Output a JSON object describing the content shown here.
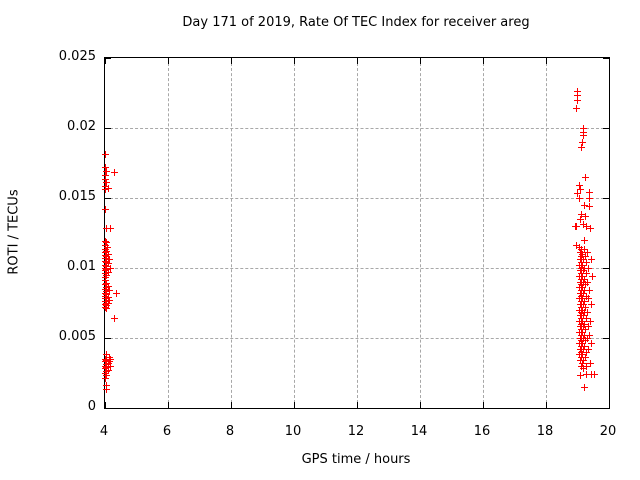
{
  "colors": {
    "marker": "#ff0000",
    "grid": "#a8a8a8",
    "axis": "#000000",
    "background": "#ffffff"
  },
  "chart_data": {
    "type": "scatter",
    "title": "Day 171 of 2019, Rate Of TEC Index for receiver areg",
    "xlabel": "GPS time / hours",
    "ylabel": "ROTI / TECUs",
    "xlim": [
      4,
      20
    ],
    "ylim": [
      0,
      0.025
    ],
    "x_ticks": [
      4,
      6,
      8,
      10,
      12,
      14,
      16,
      18,
      20
    ],
    "x_tick_labels": [
      "4",
      "6",
      "8",
      "10",
      "12",
      "14",
      "16",
      "18",
      "20"
    ],
    "y_ticks": [
      0,
      0.005,
      0.01,
      0.015,
      0.02,
      0.025
    ],
    "y_tick_labels": [
      "0",
      "0.005",
      "0.01",
      "0.015",
      "0.02",
      "0.025"
    ],
    "grid": true,
    "legend_position": "none",
    "marker": {
      "shape": "plus",
      "color": "#ff0000"
    },
    "series": [
      {
        "name": "ROTI",
        "points": [
          [
            4.03,
            0.0181
          ],
          [
            4.03,
            0.0172
          ],
          [
            4.06,
            0.0169
          ],
          [
            4.29,
            0.0168
          ],
          [
            4.03,
            0.0166
          ],
          [
            4.03,
            0.0163
          ],
          [
            4.06,
            0.0161
          ],
          [
            4.03,
            0.0158
          ],
          [
            4.1,
            0.0157
          ],
          [
            4.03,
            0.0156
          ],
          [
            4.03,
            0.0142
          ],
          [
            4.06,
            0.0128
          ],
          [
            4.19,
            0.0128
          ],
          [
            4.03,
            0.0119
          ],
          [
            4.06,
            0.0118
          ],
          [
            4.03,
            0.0116
          ],
          [
            4.08,
            0.0115
          ],
          [
            4.03,
            0.0113
          ],
          [
            4.06,
            0.0112
          ],
          [
            4.03,
            0.0111
          ],
          [
            4.1,
            0.011
          ],
          [
            4.03,
            0.0109
          ],
          [
            4.06,
            0.0108
          ],
          [
            4.03,
            0.0107
          ],
          [
            4.13,
            0.0106
          ],
          [
            4.03,
            0.0105
          ],
          [
            4.06,
            0.0104
          ],
          [
            4.1,
            0.0103
          ],
          [
            4.03,
            0.0102
          ],
          [
            4.06,
            0.0101
          ],
          [
            4.03,
            0.01
          ],
          [
            4.16,
            0.01
          ],
          [
            4.06,
            0.0099
          ],
          [
            4.03,
            0.0098
          ],
          [
            4.1,
            0.0097
          ],
          [
            4.03,
            0.0096
          ],
          [
            4.06,
            0.0095
          ],
          [
            4.03,
            0.0093
          ],
          [
            4.03,
            0.0091
          ],
          [
            4.06,
            0.0089
          ],
          [
            4.03,
            0.0088
          ],
          [
            4.1,
            0.0087
          ],
          [
            4.06,
            0.0086
          ],
          [
            4.03,
            0.0085
          ],
          [
            4.13,
            0.0084
          ],
          [
            4.06,
            0.0083
          ],
          [
            4.38,
            0.0082
          ],
          [
            4.03,
            0.0082
          ],
          [
            4.06,
            0.0081
          ],
          [
            4.03,
            0.008
          ],
          [
            4.1,
            0.0079
          ],
          [
            4.06,
            0.0078
          ],
          [
            4.03,
            0.0078
          ],
          [
            4.13,
            0.0077
          ],
          [
            4.03,
            0.0076
          ],
          [
            4.06,
            0.0075
          ],
          [
            4.1,
            0.0075
          ],
          [
            4.03,
            0.0074
          ],
          [
            4.06,
            0.0073
          ],
          [
            4.03,
            0.0072
          ],
          [
            4.06,
            0.0071
          ],
          [
            4.29,
            0.0064
          ],
          [
            4.06,
            0.0038
          ],
          [
            4.13,
            0.0036
          ],
          [
            4.03,
            0.0035
          ],
          [
            4.19,
            0.0035
          ],
          [
            4.06,
            0.0034
          ],
          [
            4.03,
            0.0033
          ],
          [
            4.13,
            0.0033
          ],
          [
            4.1,
            0.0032
          ],
          [
            4.06,
            0.0031
          ],
          [
            4.03,
            0.003
          ],
          [
            4.16,
            0.003
          ],
          [
            4.06,
            0.0029
          ],
          [
            4.03,
            0.0028
          ],
          [
            4.1,
            0.0027
          ],
          [
            4.06,
            0.0026
          ],
          [
            4.03,
            0.0025
          ],
          [
            4.06,
            0.0023
          ],
          [
            4.03,
            0.0021
          ],
          [
            4.06,
            0.0016
          ],
          [
            4.05,
            0.0013
          ],
          [
            19.0,
            0.0226
          ],
          [
            19.0,
            0.0223
          ],
          [
            19.0,
            0.022
          ],
          [
            18.98,
            0.0214
          ],
          [
            19.18,
            0.02
          ],
          [
            19.18,
            0.0197
          ],
          [
            19.18,
            0.0195
          ],
          [
            19.16,
            0.019
          ],
          [
            19.13,
            0.0186
          ],
          [
            19.25,
            0.0165
          ],
          [
            19.06,
            0.0159
          ],
          [
            19.09,
            0.0156
          ],
          [
            19.38,
            0.0154
          ],
          [
            19.0,
            0.0153
          ],
          [
            19.06,
            0.015
          ],
          [
            19.38,
            0.015
          ],
          [
            19.22,
            0.0145
          ],
          [
            19.38,
            0.0144
          ],
          [
            19.13,
            0.0138
          ],
          [
            19.25,
            0.0137
          ],
          [
            19.09,
            0.0135
          ],
          [
            18.95,
            0.013
          ],
          [
            18.97,
            0.013
          ],
          [
            19.19,
            0.0131
          ],
          [
            19.28,
            0.013
          ],
          [
            19.41,
            0.0128
          ],
          [
            19.22,
            0.012
          ],
          [
            18.98,
            0.0116
          ],
          [
            19.06,
            0.0115
          ],
          [
            19.13,
            0.0113
          ],
          [
            19.22,
            0.0113
          ],
          [
            19.09,
            0.0111
          ],
          [
            19.31,
            0.0111
          ],
          [
            19.16,
            0.011
          ],
          [
            19.13,
            0.0108
          ],
          [
            19.25,
            0.0108
          ],
          [
            19.09,
            0.0106
          ],
          [
            19.19,
            0.0106
          ],
          [
            19.44,
            0.0106
          ],
          [
            19.13,
            0.0104
          ],
          [
            19.28,
            0.0104
          ],
          [
            19.06,
            0.0102
          ],
          [
            19.16,
            0.0102
          ],
          [
            19.13,
            0.01
          ],
          [
            19.22,
            0.01
          ],
          [
            19.34,
            0.01
          ],
          [
            19.09,
            0.0098
          ],
          [
            19.19,
            0.0098
          ],
          [
            19.13,
            0.0096
          ],
          [
            19.28,
            0.0096
          ],
          [
            19.06,
            0.0094
          ],
          [
            19.16,
            0.0094
          ],
          [
            19.47,
            0.0094
          ],
          [
            19.13,
            0.0092
          ],
          [
            19.22,
            0.0092
          ],
          [
            19.09,
            0.009
          ],
          [
            19.19,
            0.009
          ],
          [
            19.31,
            0.009
          ],
          [
            19.13,
            0.0088
          ],
          [
            19.25,
            0.0088
          ],
          [
            19.06,
            0.0086
          ],
          [
            19.16,
            0.0086
          ],
          [
            19.13,
            0.0084
          ],
          [
            19.22,
            0.0084
          ],
          [
            19.38,
            0.0084
          ],
          [
            19.09,
            0.0082
          ],
          [
            19.19,
            0.0082
          ],
          [
            19.13,
            0.008
          ],
          [
            19.28,
            0.008
          ],
          [
            19.06,
            0.0078
          ],
          [
            19.16,
            0.0078
          ],
          [
            19.34,
            0.0078
          ],
          [
            19.13,
            0.0076
          ],
          [
            19.22,
            0.0076
          ],
          [
            19.09,
            0.0074
          ],
          [
            19.19,
            0.0074
          ],
          [
            19.44,
            0.0074
          ],
          [
            19.13,
            0.0072
          ],
          [
            19.25,
            0.0072
          ],
          [
            19.06,
            0.007
          ],
          [
            19.16,
            0.007
          ],
          [
            19.13,
            0.0068
          ],
          [
            19.22,
            0.0068
          ],
          [
            19.31,
            0.0068
          ],
          [
            19.09,
            0.0066
          ],
          [
            19.19,
            0.0066
          ],
          [
            19.13,
            0.0064
          ],
          [
            19.28,
            0.0064
          ],
          [
            19.06,
            0.0062
          ],
          [
            19.16,
            0.0062
          ],
          [
            19.41,
            0.0062
          ],
          [
            19.13,
            0.006
          ],
          [
            19.22,
            0.006
          ],
          [
            19.09,
            0.0058
          ],
          [
            19.19,
            0.0058
          ],
          [
            19.34,
            0.0058
          ],
          [
            19.13,
            0.0056
          ],
          [
            19.25,
            0.0056
          ],
          [
            19.06,
            0.0054
          ],
          [
            19.16,
            0.0054
          ],
          [
            19.13,
            0.0052
          ],
          [
            19.22,
            0.0052
          ],
          [
            19.38,
            0.0052
          ],
          [
            19.09,
            0.005
          ],
          [
            19.19,
            0.005
          ],
          [
            19.31,
            0.005
          ],
          [
            19.13,
            0.0048
          ],
          [
            19.25,
            0.0048
          ],
          [
            19.06,
            0.0046
          ],
          [
            19.16,
            0.0046
          ],
          [
            19.44,
            0.0046
          ],
          [
            19.13,
            0.0044
          ],
          [
            19.22,
            0.0044
          ],
          [
            19.09,
            0.0042
          ],
          [
            19.19,
            0.0042
          ],
          [
            19.34,
            0.0042
          ],
          [
            19.13,
            0.004
          ],
          [
            19.28,
            0.004
          ],
          [
            19.06,
            0.0038
          ],
          [
            19.16,
            0.0038
          ],
          [
            19.13,
            0.0036
          ],
          [
            19.25,
            0.0036
          ],
          [
            19.09,
            0.0034
          ],
          [
            19.19,
            0.0034
          ],
          [
            19.16,
            0.0032
          ],
          [
            19.41,
            0.0032
          ],
          [
            19.13,
            0.003
          ],
          [
            19.28,
            0.003
          ],
          [
            19.19,
            0.0028
          ],
          [
            19.11,
            0.0023
          ],
          [
            19.3,
            0.0024
          ],
          [
            19.43,
            0.0024
          ],
          [
            19.53,
            0.0024
          ],
          [
            19.21,
            0.0015
          ]
        ]
      }
    ]
  }
}
